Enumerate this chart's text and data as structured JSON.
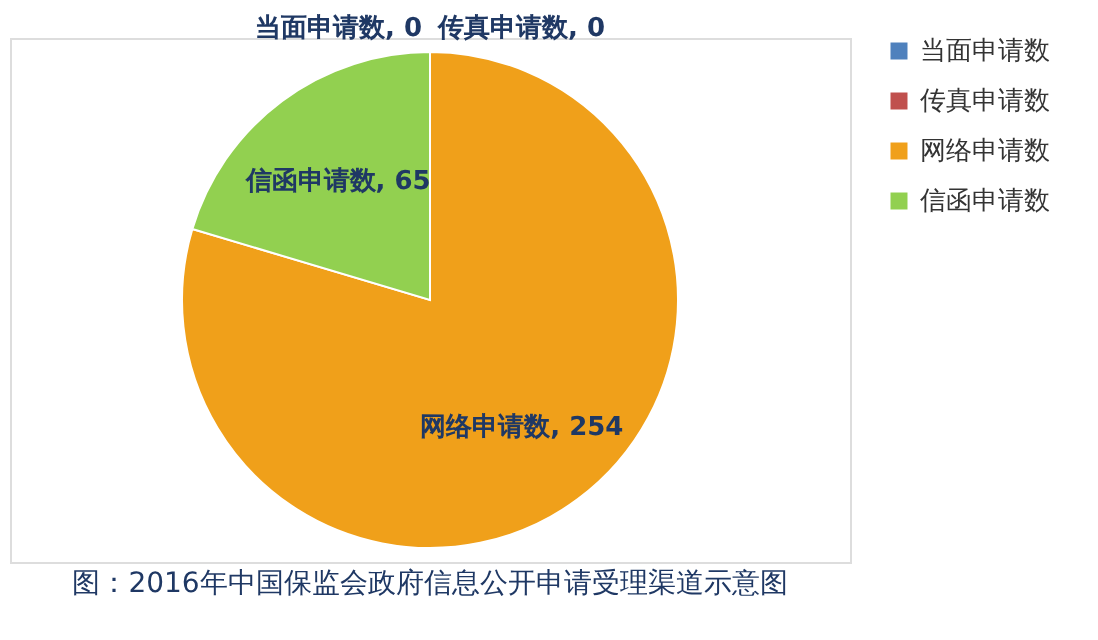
{
  "chart_data": {
    "type": "pie",
    "categories": [
      "当面申请数",
      "传真申请数",
      "网络申请数",
      "信函申请数"
    ],
    "values": [
      0,
      0,
      254,
      65
    ],
    "colors": [
      "#4f81bd",
      "#c0504d",
      "#f0a01a",
      "#92d050"
    ],
    "value_labels": [
      "当面申请数, 0",
      "传真申请数, 0",
      "网络申请数, 254",
      "信函申请数, 65"
    ],
    "legend": "right",
    "annotations": [
      "图：2016年中国保监会政府信息公开申请受理渠道示意图"
    ]
  }
}
